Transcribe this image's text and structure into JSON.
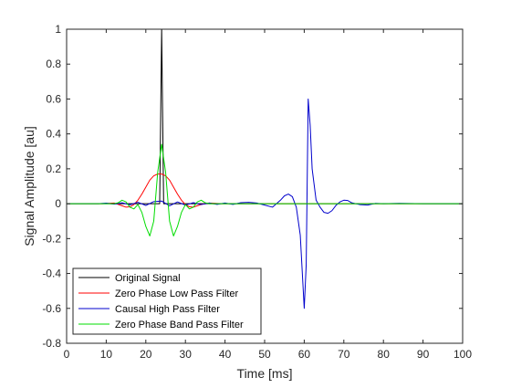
{
  "chart_data": {
    "type": "line",
    "title": "",
    "xlabel": "Time [ms]",
    "ylabel": "Signal Amplitude [au]",
    "xlim": [
      0,
      100
    ],
    "ylim": [
      -0.8,
      1
    ],
    "xticks": [
      0,
      10,
      20,
      30,
      40,
      50,
      60,
      70,
      80,
      90,
      100
    ],
    "yticks": [
      -0.8,
      -0.6,
      -0.4,
      -0.2,
      0,
      0.2,
      0.4,
      0.6,
      0.8,
      1
    ],
    "xtick_labels": [
      "0",
      "10",
      "20",
      "30",
      "40",
      "50",
      "60",
      "70",
      "80",
      "90",
      "100"
    ],
    "ytick_labels": [
      "-0.8",
      "-0.6",
      "-0.4",
      "-0.2",
      "0",
      "0.2",
      "0.4",
      "0.6",
      "0.8",
      "1"
    ],
    "grid": false,
    "legend_position": "bottom-left",
    "series": [
      {
        "name": "Original Signal",
        "color": "#000000",
        "x": [
          0,
          23.5,
          24,
          24.5,
          100
        ],
        "y": [
          0,
          0,
          1,
          0,
          0
        ]
      },
      {
        "name": "Zero Phase Low Pass Filter",
        "color": "#ff0000",
        "x": [
          0,
          9,
          12,
          14,
          15,
          16,
          17,
          18,
          19,
          20,
          21,
          22,
          23,
          24,
          25,
          26,
          27,
          28,
          29,
          30,
          31,
          32,
          33,
          34,
          36,
          39,
          100
        ],
        "y": [
          0,
          0,
          0.004,
          -0.012,
          -0.02,
          -0.018,
          -0.005,
          0.02,
          0.055,
          0.095,
          0.135,
          0.16,
          0.17,
          0.17,
          0.16,
          0.135,
          0.095,
          0.055,
          0.02,
          -0.005,
          -0.018,
          -0.02,
          -0.012,
          -0.004,
          0.004,
          0,
          0
        ]
      },
      {
        "name": "Causal High Pass Filter",
        "color": "#0000cc",
        "x": [
          0,
          8,
          10,
          12,
          14,
          16,
          18,
          20,
          22,
          24,
          26,
          28,
          30,
          32,
          34,
          36,
          38,
          40,
          42,
          44,
          46,
          48,
          50,
          52,
          54,
          55,
          56,
          57,
          58,
          59,
          60,
          60.5,
          61,
          61.5,
          62,
          63,
          64,
          65,
          66,
          67,
          68,
          69,
          70,
          71,
          72,
          74,
          76,
          78,
          80,
          84,
          90,
          100
        ],
        "y": [
          0,
          0,
          0.003,
          -0.003,
          0.005,
          -0.006,
          0.008,
          -0.01,
          0.012,
          0.015,
          -0.012,
          0.01,
          -0.008,
          0.006,
          -0.005,
          0.004,
          -0.004,
          0.004,
          -0.004,
          0.006,
          0.008,
          0.004,
          -0.008,
          -0.02,
          0.02,
          0.045,
          0.055,
          0.04,
          -0.02,
          -0.18,
          -0.6,
          -0.35,
          0.6,
          0.45,
          0.2,
          0.02,
          -0.02,
          -0.05,
          -0.055,
          -0.04,
          -0.01,
          0.01,
          0.02,
          0.018,
          0.005,
          -0.005,
          -0.008,
          0.002,
          0,
          0.002,
          0,
          0
        ]
      },
      {
        "name": "Zero Phase Band Pass Filter",
        "color": "#00dd00",
        "x": [
          0,
          12,
          13,
          14,
          15,
          16,
          17,
          18,
          19,
          20,
          21,
          22,
          23,
          24,
          25,
          26,
          27,
          28,
          29,
          30,
          31,
          32,
          33,
          34,
          35,
          36,
          100
        ],
        "y": [
          0,
          0,
          0.005,
          0.02,
          0.01,
          -0.02,
          -0.03,
          -0.005,
          -0.05,
          -0.13,
          -0.185,
          -0.1,
          0.18,
          0.34,
          0.18,
          -0.1,
          -0.185,
          -0.13,
          -0.05,
          -0.005,
          -0.03,
          -0.02,
          0.01,
          0.02,
          0.005,
          0,
          0
        ]
      }
    ]
  }
}
